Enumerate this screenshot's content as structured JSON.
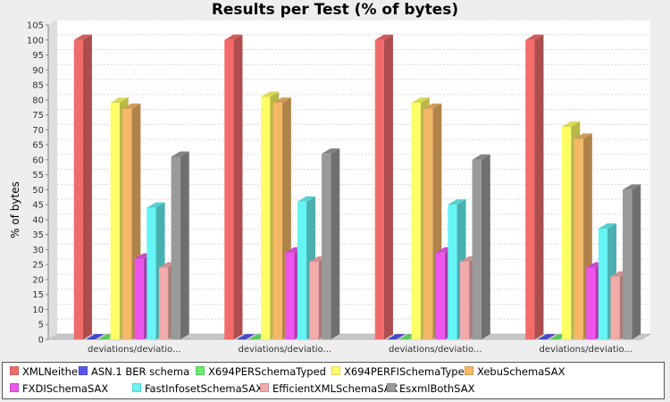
{
  "chart_data": {
    "type": "bar",
    "title": "Results per Test (% of bytes)",
    "xlabel": "",
    "ylabel": "% of bytes",
    "ylim": [
      0,
      105
    ],
    "ytick_step": 5,
    "grid": true,
    "legend_position": "bottom",
    "categories": [
      "deviations/deviatio...",
      "deviations/deviatio...",
      "deviations/deviatio...",
      "deviations/deviatio..."
    ],
    "series": [
      {
        "name": "XMLNeither",
        "color": "#f26b6b",
        "values": [
          100,
          100,
          100,
          100
        ]
      },
      {
        "name": "ASN.1 BER schema",
        "color": "#5555ee",
        "values": [
          0,
          0,
          0,
          0
        ]
      },
      {
        "name": "X694PERSchemaTyped",
        "color": "#66ee66",
        "values": [
          0,
          0,
          0,
          0
        ]
      },
      {
        "name": "X694PERFISchemaTyped",
        "color": "#ffff66",
        "values": [
          79,
          81,
          79,
          71
        ]
      },
      {
        "name": "XebuSchemaSAX",
        "color": "#f5b866",
        "values": [
          77,
          79,
          77,
          67
        ]
      },
      {
        "name": "FXDISchemaSAX",
        "color": "#ee55ee",
        "values": [
          27,
          29,
          29,
          24
        ]
      },
      {
        "name": "FastInfosetSchemaSAX",
        "color": "#66f5f5",
        "values": [
          44,
          46,
          45,
          37
        ]
      },
      {
        "name": "EfficientXMLSchemaSAX",
        "color": "#f2aaaa",
        "values": [
          24,
          26,
          26,
          21
        ]
      },
      {
        "name": "EsxmlBothSAX",
        "color": "#9a9a9a",
        "values": [
          61,
          62,
          60,
          50
        ]
      }
    ]
  }
}
